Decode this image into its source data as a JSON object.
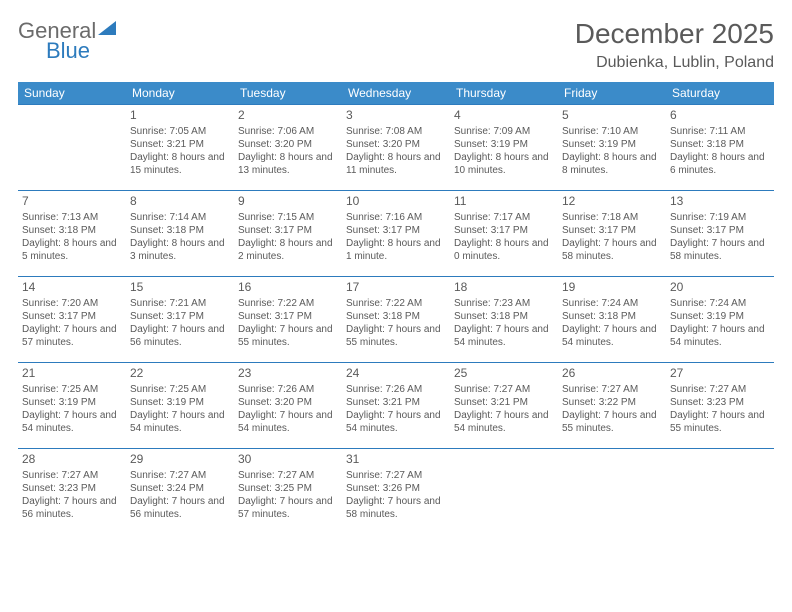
{
  "logo": {
    "text1": "General",
    "text2": "Blue"
  },
  "title": "December 2025",
  "location": "Dubienka, Lublin, Poland",
  "colors": {
    "header_bg": "#3b8bc9",
    "divider": "#2d7bbd",
    "text": "#5a5a5a",
    "logo_gray": "#6b6b6b",
    "logo_blue": "#2d7bbd"
  },
  "day_headers": [
    "Sunday",
    "Monday",
    "Tuesday",
    "Wednesday",
    "Thursday",
    "Friday",
    "Saturday"
  ],
  "weeks": [
    [
      null,
      {
        "n": "1",
        "sr": "7:05 AM",
        "ss": "3:21 PM",
        "dl": "8 hours and 15 minutes."
      },
      {
        "n": "2",
        "sr": "7:06 AM",
        "ss": "3:20 PM",
        "dl": "8 hours and 13 minutes."
      },
      {
        "n": "3",
        "sr": "7:08 AM",
        "ss": "3:20 PM",
        "dl": "8 hours and 11 minutes."
      },
      {
        "n": "4",
        "sr": "7:09 AM",
        "ss": "3:19 PM",
        "dl": "8 hours and 10 minutes."
      },
      {
        "n": "5",
        "sr": "7:10 AM",
        "ss": "3:19 PM",
        "dl": "8 hours and 8 minutes."
      },
      {
        "n": "6",
        "sr": "7:11 AM",
        "ss": "3:18 PM",
        "dl": "8 hours and 6 minutes."
      }
    ],
    [
      {
        "n": "7",
        "sr": "7:13 AM",
        "ss": "3:18 PM",
        "dl": "8 hours and 5 minutes."
      },
      {
        "n": "8",
        "sr": "7:14 AM",
        "ss": "3:18 PM",
        "dl": "8 hours and 3 minutes."
      },
      {
        "n": "9",
        "sr": "7:15 AM",
        "ss": "3:17 PM",
        "dl": "8 hours and 2 minutes."
      },
      {
        "n": "10",
        "sr": "7:16 AM",
        "ss": "3:17 PM",
        "dl": "8 hours and 1 minute."
      },
      {
        "n": "11",
        "sr": "7:17 AM",
        "ss": "3:17 PM",
        "dl": "8 hours and 0 minutes."
      },
      {
        "n": "12",
        "sr": "7:18 AM",
        "ss": "3:17 PM",
        "dl": "7 hours and 58 minutes."
      },
      {
        "n": "13",
        "sr": "7:19 AM",
        "ss": "3:17 PM",
        "dl": "7 hours and 58 minutes."
      }
    ],
    [
      {
        "n": "14",
        "sr": "7:20 AM",
        "ss": "3:17 PM",
        "dl": "7 hours and 57 minutes."
      },
      {
        "n": "15",
        "sr": "7:21 AM",
        "ss": "3:17 PM",
        "dl": "7 hours and 56 minutes."
      },
      {
        "n": "16",
        "sr": "7:22 AM",
        "ss": "3:17 PM",
        "dl": "7 hours and 55 minutes."
      },
      {
        "n": "17",
        "sr": "7:22 AM",
        "ss": "3:18 PM",
        "dl": "7 hours and 55 minutes."
      },
      {
        "n": "18",
        "sr": "7:23 AM",
        "ss": "3:18 PM",
        "dl": "7 hours and 54 minutes."
      },
      {
        "n": "19",
        "sr": "7:24 AM",
        "ss": "3:18 PM",
        "dl": "7 hours and 54 minutes."
      },
      {
        "n": "20",
        "sr": "7:24 AM",
        "ss": "3:19 PM",
        "dl": "7 hours and 54 minutes."
      }
    ],
    [
      {
        "n": "21",
        "sr": "7:25 AM",
        "ss": "3:19 PM",
        "dl": "7 hours and 54 minutes."
      },
      {
        "n": "22",
        "sr": "7:25 AM",
        "ss": "3:19 PM",
        "dl": "7 hours and 54 minutes."
      },
      {
        "n": "23",
        "sr": "7:26 AM",
        "ss": "3:20 PM",
        "dl": "7 hours and 54 minutes."
      },
      {
        "n": "24",
        "sr": "7:26 AM",
        "ss": "3:21 PM",
        "dl": "7 hours and 54 minutes."
      },
      {
        "n": "25",
        "sr": "7:27 AM",
        "ss": "3:21 PM",
        "dl": "7 hours and 54 minutes."
      },
      {
        "n": "26",
        "sr": "7:27 AM",
        "ss": "3:22 PM",
        "dl": "7 hours and 55 minutes."
      },
      {
        "n": "27",
        "sr": "7:27 AM",
        "ss": "3:23 PM",
        "dl": "7 hours and 55 minutes."
      }
    ],
    [
      {
        "n": "28",
        "sr": "7:27 AM",
        "ss": "3:23 PM",
        "dl": "7 hours and 56 minutes."
      },
      {
        "n": "29",
        "sr": "7:27 AM",
        "ss": "3:24 PM",
        "dl": "7 hours and 56 minutes."
      },
      {
        "n": "30",
        "sr": "7:27 AM",
        "ss": "3:25 PM",
        "dl": "7 hours and 57 minutes."
      },
      {
        "n": "31",
        "sr": "7:27 AM",
        "ss": "3:26 PM",
        "dl": "7 hours and 58 minutes."
      },
      null,
      null,
      null
    ]
  ],
  "labels": {
    "sunrise": "Sunrise:",
    "sunset": "Sunset:",
    "daylight": "Daylight:"
  }
}
